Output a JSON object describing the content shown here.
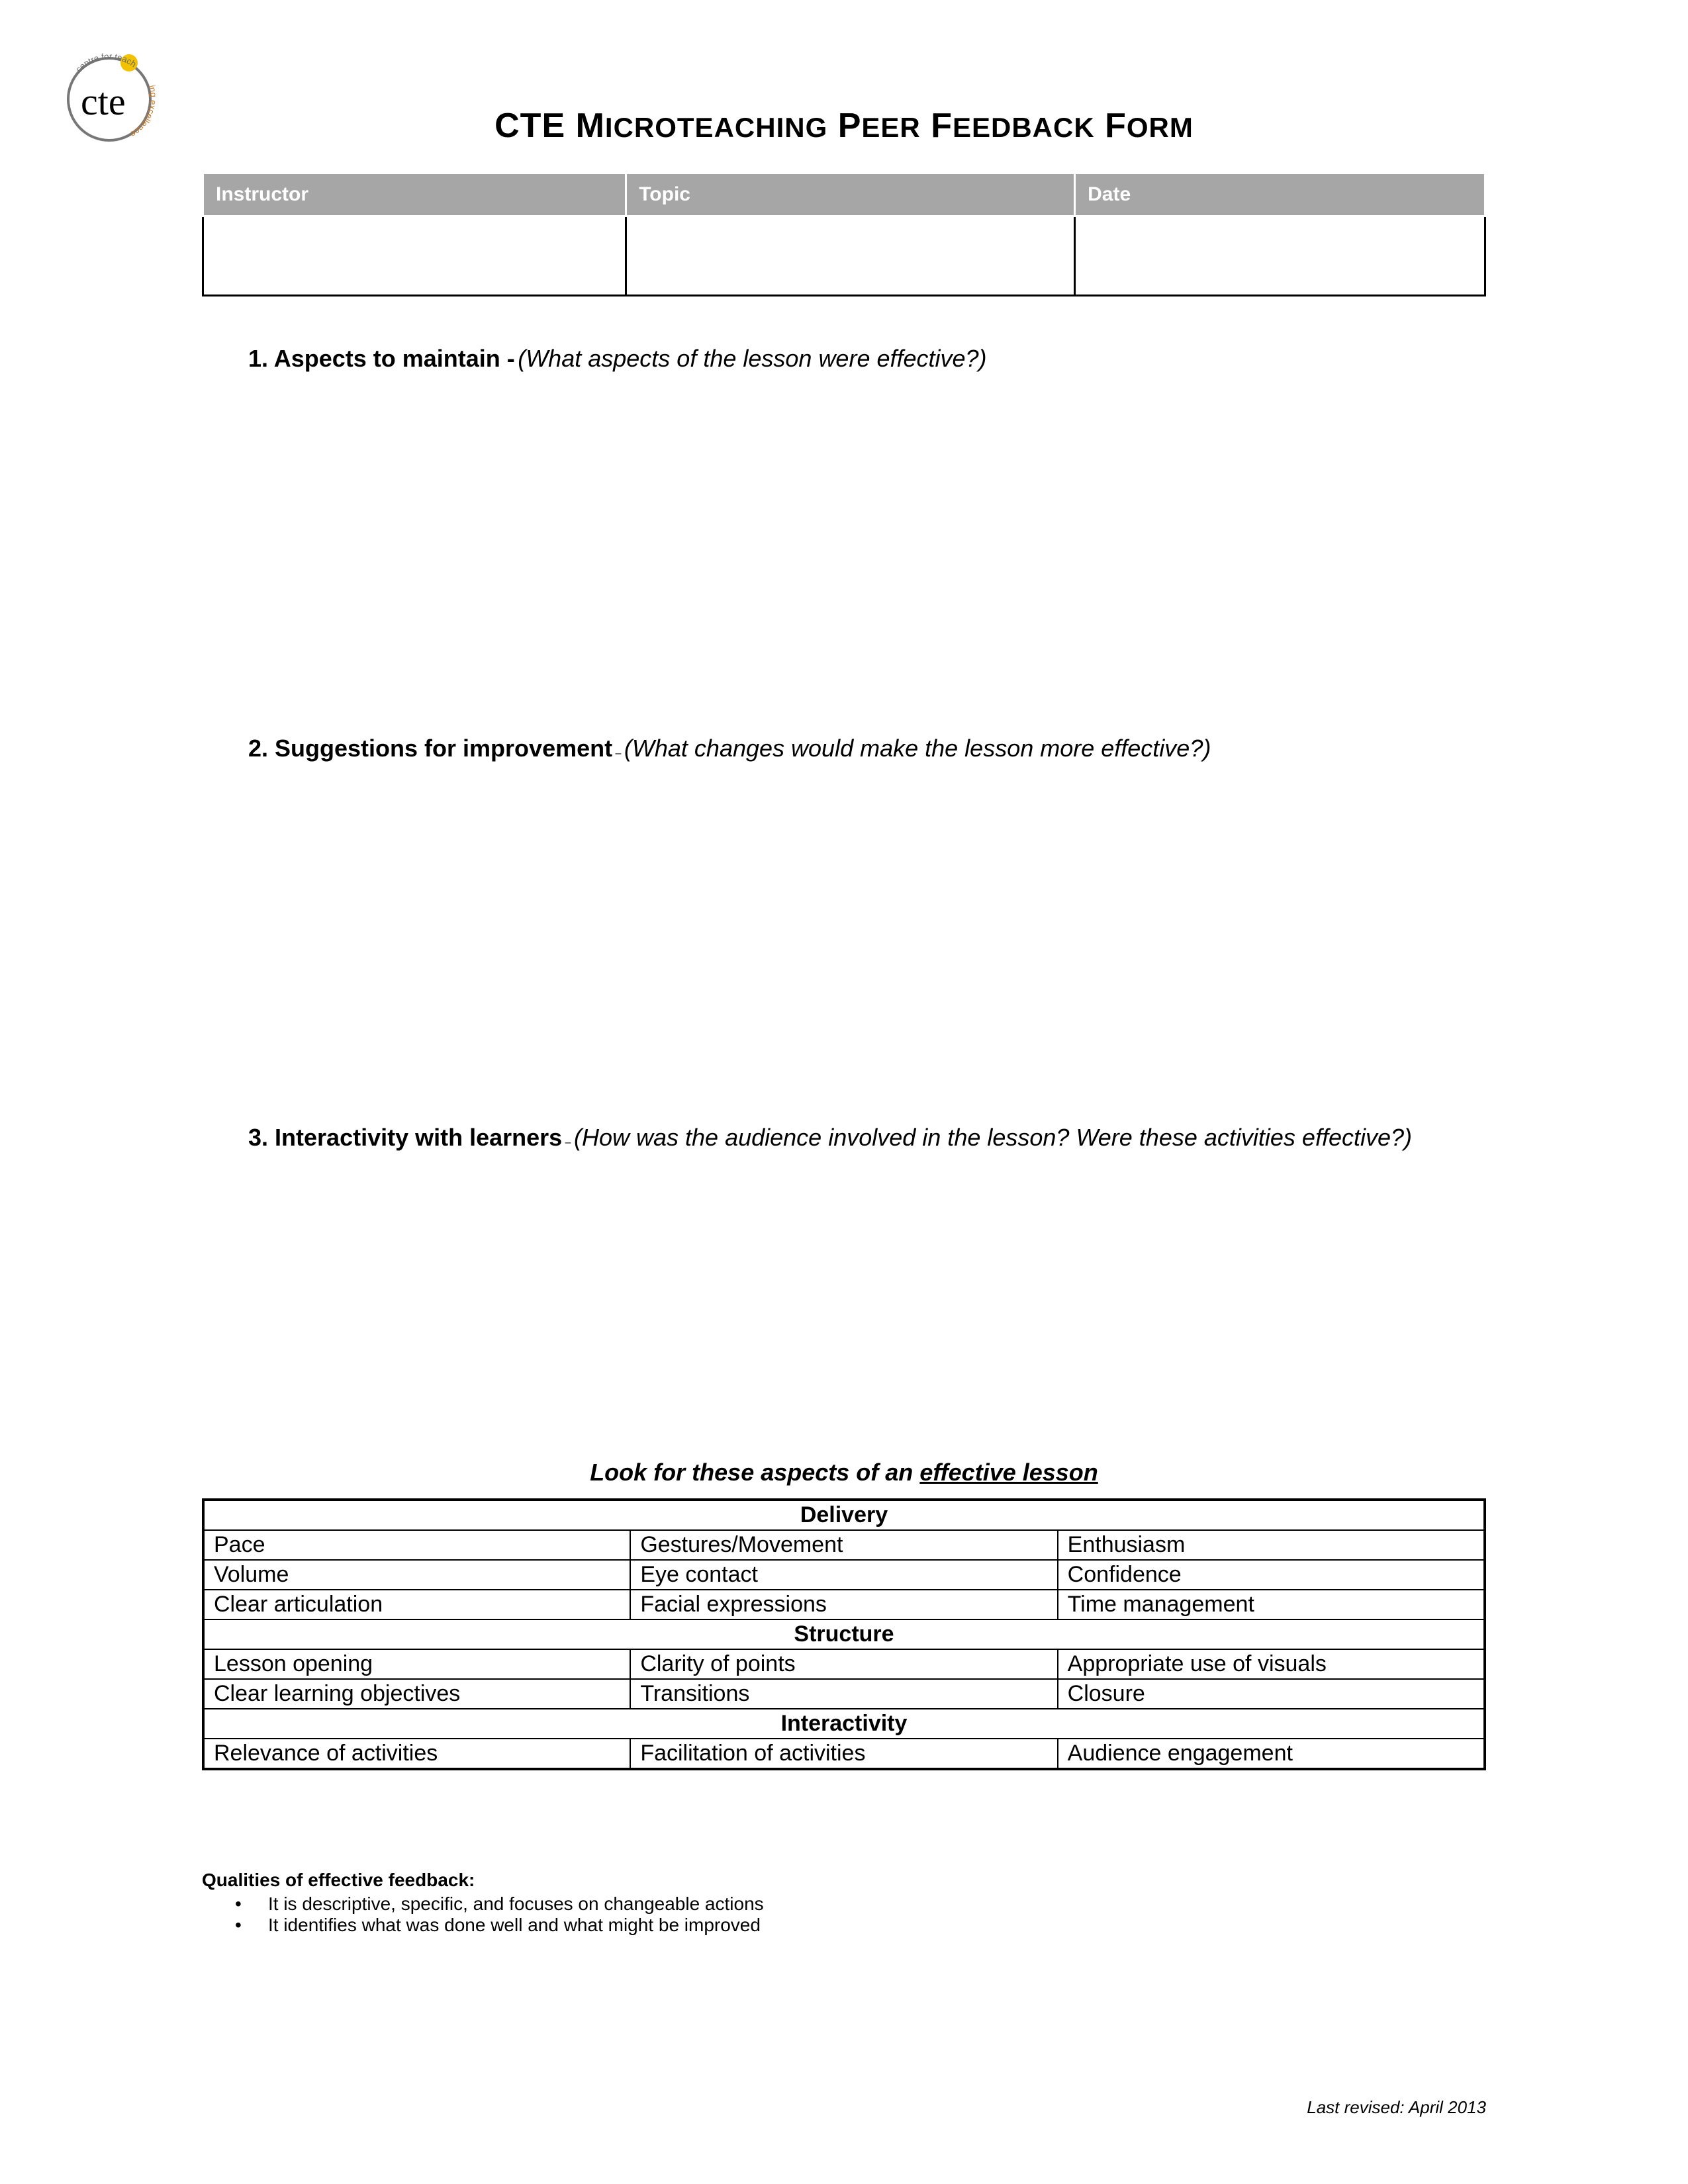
{
  "logo": {
    "text_main": "cte",
    "arc_text": "centre for teaching excellence",
    "arc_color_top": "#6b6b6b",
    "arc_color_right": "#c97a2a",
    "dot_color": "#f2c200",
    "ring_color": "#777777"
  },
  "title": {
    "words": [
      {
        "caps": "CTE",
        "small": ""
      },
      {
        "caps": "M",
        "small": "ICROTEACHING"
      },
      {
        "caps": "P",
        "small": "EER"
      },
      {
        "caps": "F",
        "small": "EEDBACK"
      },
      {
        "caps": "F",
        "small": "ORM"
      }
    ]
  },
  "info_table": {
    "headers": [
      "Instructor",
      "Topic",
      "Date"
    ],
    "values": [
      "",
      "",
      ""
    ]
  },
  "questions": [
    {
      "num": "1.",
      "title": "Aspects to maintain -",
      "prompt": "(What aspects of the lesson were effective?)"
    },
    {
      "num": "2.",
      "title": "Suggestions for improvement",
      "sep": " – ",
      "prompt": "(What changes would make the lesson more effective?)"
    },
    {
      "num": "3.",
      "title": "Interactivity with learners",
      "sep": " – ",
      "prompt": "(How was the audience involved in the lesson? Were these activities effective?)"
    }
  ],
  "lookfor": {
    "prefix": "Look for these aspects of an ",
    "underline": "effective lesson"
  },
  "aspects": {
    "sections": [
      {
        "header": "Delivery",
        "rows": [
          [
            "Pace",
            "Gestures/Movement",
            "Enthusiasm"
          ],
          [
            "Volume",
            "Eye contact",
            "Confidence"
          ],
          [
            "Clear articulation",
            "Facial expressions",
            "Time management"
          ]
        ]
      },
      {
        "header": "Structure",
        "rows": [
          [
            "Lesson opening",
            "Clarity of points",
            "Appropriate use of visuals"
          ],
          [
            "Clear learning objectives",
            "Transitions",
            "Closure"
          ]
        ]
      },
      {
        "header": "Interactivity",
        "rows": [
          [
            "Relevance of activities",
            "Facilitation of activities",
            "Audience engagement"
          ]
        ]
      }
    ]
  },
  "qualities": {
    "title": "Qualities of effective feedback:",
    "items": [
      "It is descriptive, specific, and focuses on changeable actions",
      "It identifies what was done well and what might be improved"
    ]
  },
  "footer": {
    "revised": "Last revised: April 2013"
  }
}
